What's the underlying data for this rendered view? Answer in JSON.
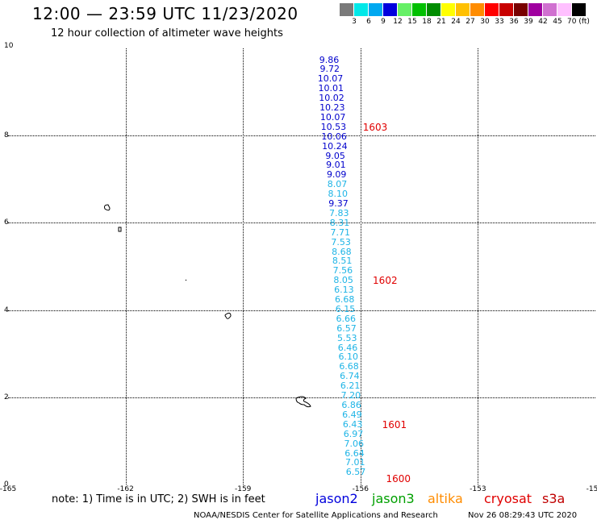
{
  "header": {
    "title": "12:00 — 23:59 UTC 11/23/2020",
    "subtitle": "12 hour collection of altimeter wave heights"
  },
  "color_scale": {
    "labels": [
      "3",
      "6",
      "9",
      "12",
      "15",
      "18",
      "21",
      "24",
      "27",
      "30",
      "33",
      "36",
      "39",
      "42",
      "45",
      "70 (ft)"
    ],
    "colors": [
      "#7a7a7a",
      "#00e8e8",
      "#00a8f0",
      "#0000dd",
      "#66f066",
      "#00c000",
      "#008c00",
      "#ffff00",
      "#ffc000",
      "#ff8c00",
      "#ff0000",
      "#c80000",
      "#780000",
      "#a000a0",
      "#d070d0",
      "#ffc0ff",
      "#000000"
    ]
  },
  "axes": {
    "y_ticks": [
      "10",
      "8",
      "6",
      "4",
      "2",
      "0"
    ],
    "x_ticks": [
      "-165",
      "-162",
      "-159",
      "-156",
      "-153",
      "-15"
    ],
    "lon_range": [
      -165,
      -150
    ],
    "lat_range": [
      0,
      10
    ]
  },
  "track": {
    "lon": -156.8,
    "readings": [
      {
        "v": "9.86",
        "lat": 9.75,
        "c": "#0000cc"
      },
      {
        "v": "9.72",
        "lat": 9.53,
        "c": "#0000cc"
      },
      {
        "v": "10.07",
        "lat": 9.31,
        "c": "#0000cc"
      },
      {
        "v": "10.01",
        "lat": 9.09,
        "c": "#0000cc"
      },
      {
        "v": "10.02",
        "lat": 8.87,
        "c": "#0000cc"
      },
      {
        "v": "10.23",
        "lat": 8.65,
        "c": "#0000cc"
      },
      {
        "v": "10.07",
        "lat": 8.43,
        "c": "#0000cc"
      },
      {
        "v": "10.53",
        "lat": 8.21,
        "c": "#0000cc"
      },
      {
        "v": "10.06",
        "lat": 7.99,
        "c": "#0000cc"
      },
      {
        "v": "10.24",
        "lat": 7.77,
        "c": "#0000cc"
      },
      {
        "v": "9.05",
        "lat": 7.55,
        "c": "#0000cc"
      },
      {
        "v": "9.01",
        "lat": 7.33,
        "c": "#0000cc"
      },
      {
        "v": "9.09",
        "lat": 7.11,
        "c": "#0000cc"
      },
      {
        "v": "8.07",
        "lat": 6.89,
        "c": "#1eb4e6"
      },
      {
        "v": "8.10",
        "lat": 6.67,
        "c": "#1eb4e6"
      },
      {
        "v": "9.37",
        "lat": 6.45,
        "c": "#0000cc"
      },
      {
        "v": "7.83",
        "lat": 6.23,
        "c": "#1eb4e6"
      },
      {
        "v": "8.31",
        "lat": 6.01,
        "c": "#1eb4e6"
      },
      {
        "v": "7.71",
        "lat": 5.79,
        "c": "#1eb4e6"
      },
      {
        "v": "7.53",
        "lat": 5.57,
        "c": "#1eb4e6"
      },
      {
        "v": "8.68",
        "lat": 5.35,
        "c": "#1eb4e6"
      },
      {
        "v": "8.51",
        "lat": 5.13,
        "c": "#1eb4e6"
      },
      {
        "v": "7.56",
        "lat": 4.91,
        "c": "#1eb4e6"
      },
      {
        "v": "8.05",
        "lat": 4.69,
        "c": "#1eb4e6"
      },
      {
        "v": "6.13",
        "lat": 4.47,
        "c": "#1eb4e6"
      },
      {
        "v": "6.68",
        "lat": 4.25,
        "c": "#1eb4e6"
      },
      {
        "v": "6.15",
        "lat": 4.03,
        "c": "#1eb4e6"
      },
      {
        "v": "6.66",
        "lat": 3.81,
        "c": "#1eb4e6"
      },
      {
        "v": "6.57",
        "lat": 3.59,
        "c": "#1eb4e6"
      },
      {
        "v": "5.53",
        "lat": 3.37,
        "c": "#1eb4e6"
      },
      {
        "v": "6.46",
        "lat": 3.15,
        "c": "#1eb4e6"
      },
      {
        "v": "6.10",
        "lat": 2.93,
        "c": "#1eb4e6"
      },
      {
        "v": "6.68",
        "lat": 2.71,
        "c": "#1eb4e6"
      },
      {
        "v": "6.74",
        "lat": 2.49,
        "c": "#1eb4e6"
      },
      {
        "v": "6.21",
        "lat": 2.27,
        "c": "#1eb4e6"
      },
      {
        "v": "7.20",
        "lat": 2.05,
        "c": "#1eb4e6"
      },
      {
        "v": "6.86",
        "lat": 1.83,
        "c": "#1eb4e6"
      },
      {
        "v": "6.49",
        "lat": 1.61,
        "c": "#1eb4e6"
      },
      {
        "v": "6.43",
        "lat": 1.39,
        "c": "#1eb4e6"
      },
      {
        "v": "6.97",
        "lat": 1.17,
        "c": "#1eb4e6"
      },
      {
        "v": "7.06",
        "lat": 0.95,
        "c": "#1eb4e6"
      },
      {
        "v": "6.64",
        "lat": 0.73,
        "c": "#1eb4e6"
      },
      {
        "v": "7.01",
        "lat": 0.51,
        "c": "#1eb4e6"
      },
      {
        "v": "6.57",
        "lat": 0.29,
        "c": "#1eb4e6"
      }
    ],
    "pass_times": [
      {
        "t": "1603",
        "lat": 8.21
      },
      {
        "t": "1602",
        "lat": 4.69
      },
      {
        "t": "1601",
        "lat": 1.39
      },
      {
        "t": "1600",
        "lat": 0.0
      }
    ]
  },
  "footer": {
    "note": "note:  1) Time is in UTC;  2) SWH is in feet",
    "satellites": [
      {
        "name": "jason2",
        "color": "#0000dd"
      },
      {
        "name": "jason3",
        "color": "#00a000"
      },
      {
        "name": "altika",
        "color": "#ff8c00"
      },
      {
        "name": "cryosat",
        "color": "#e00000"
      },
      {
        "name": "s3a",
        "color": "#c00000"
      }
    ],
    "credit": "NOAA/NESDIS Center for Satellite Applications and Research",
    "timestamp": "Nov 26 08:29:43 UTC 2020"
  }
}
